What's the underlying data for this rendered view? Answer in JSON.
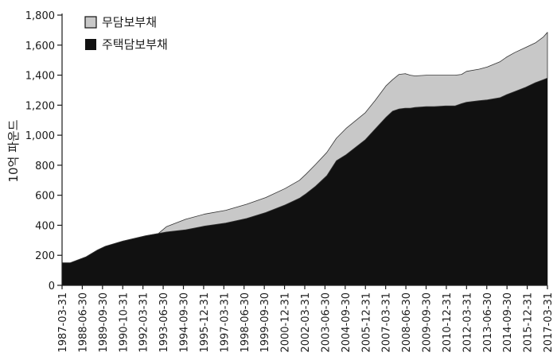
{
  "chart_data": {
    "type": "area",
    "stacked": true,
    "title": "",
    "xlabel": "",
    "ylabel": "10억 파운드",
    "ylim": [
      0,
      1800
    ],
    "yticks": [
      0,
      200,
      400,
      600,
      800,
      1000,
      1200,
      1400,
      1600,
      1800
    ],
    "ytick_labels": [
      "0",
      "200",
      "400",
      "600",
      "800",
      "1,000",
      "1,200",
      "1,400",
      "1,600",
      "1,800"
    ],
    "xtick_labels": [
      "1987-03-31",
      "1988-06-30",
      "1989-09-30",
      "1990-10-31",
      "1992-03-31",
      "1993-06-30",
      "1994-09-30",
      "1995-12-31",
      "1997-03-31",
      "1998-06-30",
      "1999-09-30",
      "2000-12-31",
      "2002-03-31",
      "2003-06-30",
      "2004-09-30",
      "2005-12-31",
      "2007-03-31",
      "2008-06-30",
      "2009-09-30",
      "2010-12-31",
      "2012-03-31",
      "2013-06-30",
      "2014-09-30",
      "2015-12-31",
      "2017-03-31"
    ],
    "legend_position": "top-left",
    "grid": false,
    "x": [
      1987.0,
      1987.5,
      1988.5,
      1989.2,
      1989.7,
      1990.8,
      1992.2,
      1993.0,
      1993.5,
      1994.7,
      1995.9,
      1997.2,
      1998.5,
      1999.7,
      2000.9,
      2001.8,
      2002.2,
      2002.8,
      2003.5,
      2004.1,
      2004.7,
      2005.9,
      2006.5,
      2007.2,
      2007.6,
      2008.0,
      2008.4,
      2008.7,
      2009.0,
      2009.7,
      2010.2,
      2010.9,
      2011.5,
      2011.9,
      2012.2,
      2013.0,
      2013.5,
      2014.3,
      2014.7,
      2015.2,
      2015.9,
      2016.5,
      2017.0,
      2017.25
    ],
    "series": [
      {
        "name": "주택담보부채",
        "color": "#111111",
        "values": [
          150,
          150,
          190,
          235,
          260,
          295,
          330,
          345,
          355,
          370,
          395,
          415,
          445,
          485,
          535,
          580,
          610,
          660,
          730,
          830,
          870,
          970,
          1040,
          1120,
          1160,
          1175,
          1180,
          1180,
          1185,
          1190,
          1190,
          1195,
          1195,
          1210,
          1220,
          1230,
          1235,
          1250,
          1270,
          1290,
          1320,
          1350,
          1370,
          1380
        ]
      },
      {
        "name": "무담보부채",
        "color": "#c8c8c8",
        "values": [
          0,
          0,
          0,
          0,
          0,
          0,
          0,
          0,
          35,
          70,
          80,
          85,
          95,
          100,
          110,
          120,
          130,
          145,
          155,
          150,
          175,
          180,
          190,
          210,
          210,
          230,
          230,
          220,
          210,
          210,
          210,
          205,
          205,
          195,
          205,
          210,
          220,
          240,
          250,
          260,
          265,
          265,
          285,
          305
        ]
      }
    ]
  }
}
